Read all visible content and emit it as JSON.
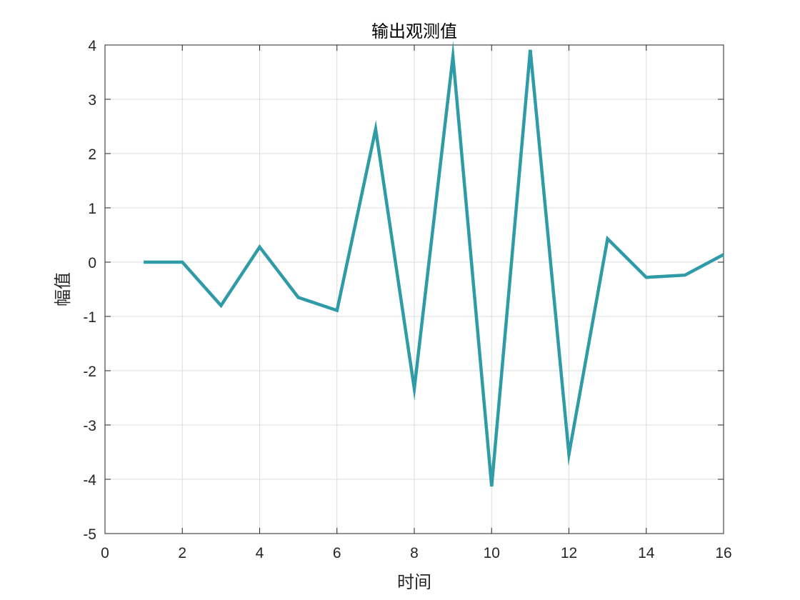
{
  "chart_data": {
    "type": "line",
    "title": "输出观测值",
    "xlabel": "时间",
    "ylabel": "幅值",
    "xlim": [
      0,
      16
    ],
    "ylim": [
      -5,
      4
    ],
    "xticks": [
      "0",
      "2",
      "4",
      "6",
      "8",
      "10",
      "12",
      "14",
      "16"
    ],
    "yticks": [
      "-5",
      "-4",
      "-3",
      "-2",
      "-1",
      "0",
      "1",
      "2",
      "3",
      "4"
    ],
    "grid": true,
    "line_color": "#2e9ba6",
    "series": [
      {
        "x": [
          1,
          2,
          3,
          4,
          5,
          6,
          7,
          8,
          9,
          10,
          11,
          12,
          13,
          14,
          15,
          16
        ],
        "values": [
          0,
          0,
          -0.8,
          0.28,
          -0.65,
          -0.89,
          2.45,
          -2.33,
          3.79,
          -4.13,
          3.91,
          -3.54,
          0.43,
          -0.28,
          -0.24,
          0.14
        ]
      }
    ]
  }
}
